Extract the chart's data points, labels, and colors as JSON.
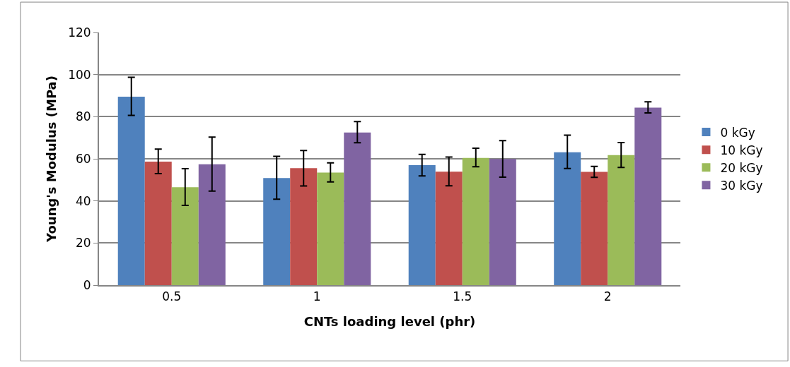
{
  "chart_data": {
    "type": "bar",
    "xlabel": "CNTs loading level (phr)",
    "ylabel": "Young's Modulus (MPa)",
    "categories": [
      "0.5",
      "1",
      "1.5",
      "2"
    ],
    "series": [
      {
        "name": "0 kGy",
        "color": "#4f81bd",
        "values": [
          89.5,
          50.9,
          57.0,
          63.1
        ],
        "errors": [
          [
            80.6,
            98.7
          ],
          [
            40.8,
            61.2
          ],
          [
            51.9,
            62.1
          ],
          [
            55.4,
            71.2
          ]
        ]
      },
      {
        "name": "10 kGy",
        "color": "#c0504d",
        "values": [
          58.7,
          55.6,
          53.9,
          53.8
        ],
        "errors": [
          [
            53.0,
            64.6
          ],
          [
            47.1,
            63.9
          ],
          [
            47.2,
            60.8
          ],
          [
            51.2,
            56.4
          ]
        ]
      },
      {
        "name": "20 kGy",
        "color": "#9bbb59",
        "values": [
          46.5,
          53.5,
          60.4,
          61.8
        ],
        "errors": [
          [
            37.9,
            55.3
          ],
          [
            49.0,
            58.1
          ],
          [
            56.2,
            65.0
          ],
          [
            55.9,
            67.7
          ]
        ]
      },
      {
        "name": "30 kGy",
        "color": "#8064a2",
        "values": [
          57.4,
          72.5,
          59.9,
          84.3
        ],
        "errors": [
          [
            44.7,
            70.3
          ],
          [
            67.6,
            77.7
          ],
          [
            51.3,
            68.6
          ],
          [
            81.8,
            87.1
          ]
        ]
      }
    ],
    "ylim": [
      0,
      120
    ],
    "yticks": [
      0,
      20,
      40,
      60,
      80,
      100,
      120
    ],
    "grid": "y",
    "legend": "right"
  }
}
